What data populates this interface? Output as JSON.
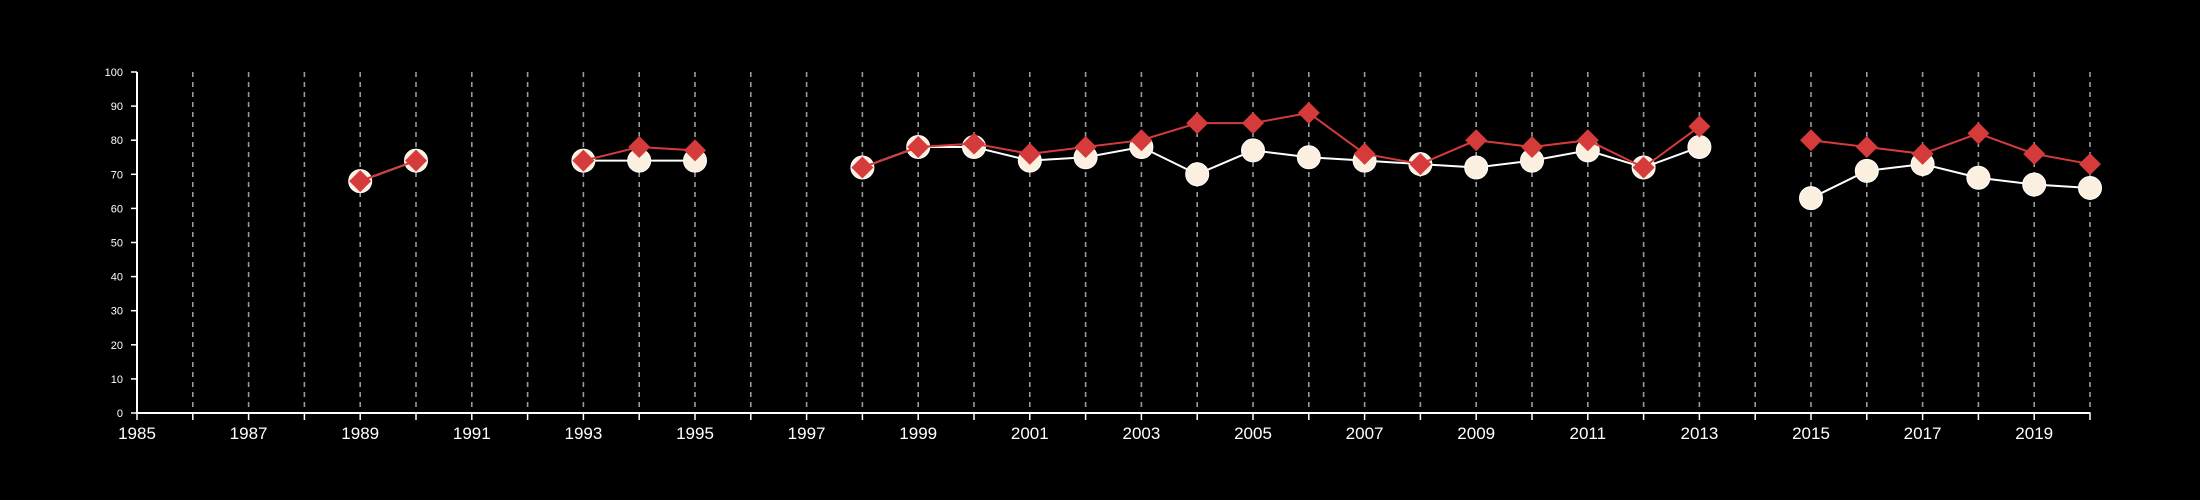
{
  "chart_data": {
    "type": "line",
    "title": "",
    "xlabel": "",
    "ylabel": "",
    "xlim": [
      1985,
      2020
    ],
    "ylim": [
      0,
      100
    ],
    "yticks": [
      0,
      10,
      20,
      30,
      40,
      50,
      60,
      70,
      80,
      90,
      100
    ],
    "xticks_labeled": [
      1985,
      1987,
      1989,
      1991,
      1993,
      1995,
      1997,
      1999,
      2001,
      2003,
      2005,
      2007,
      2009,
      2011,
      2013,
      2015,
      2017,
      2019
    ],
    "vertical_gridlines": "dashed, every year",
    "background_color": "#000000",
    "axis_color": "#ffffff",
    "series": [
      {
        "marker": "circle",
        "color": "#fbefe0",
        "line_color": "#ffffff",
        "points": [
          [
            1989,
            68
          ],
          [
            1990,
            74
          ],
          [
            1993,
            74
          ],
          [
            1994,
            74
          ],
          [
            1995,
            74
          ],
          [
            1998,
            72
          ],
          [
            1999,
            78
          ],
          [
            2000,
            78
          ],
          [
            2001,
            74
          ],
          [
            2002,
            75
          ],
          [
            2003,
            78
          ],
          [
            2004,
            70
          ],
          [
            2005,
            77
          ],
          [
            2006,
            75
          ],
          [
            2007,
            74
          ],
          [
            2008,
            73
          ],
          [
            2009,
            72
          ],
          [
            2010,
            74
          ],
          [
            2011,
            77
          ],
          [
            2012,
            72
          ],
          [
            2013,
            78
          ],
          [
            2015,
            63
          ],
          [
            2016,
            71
          ],
          [
            2017,
            73
          ],
          [
            2018,
            69
          ],
          [
            2019,
            67
          ],
          [
            2020,
            66
          ]
        ]
      },
      {
        "marker": "diamond",
        "color": "#d63b3b",
        "line_color": "#d63b3b",
        "points": [
          [
            1989,
            68
          ],
          [
            1990,
            74
          ],
          [
            1993,
            74
          ],
          [
            1994,
            78
          ],
          [
            1995,
            77
          ],
          [
            1998,
            72
          ],
          [
            1999,
            78
          ],
          [
            2000,
            79
          ],
          [
            2001,
            76
          ],
          [
            2002,
            78
          ],
          [
            2003,
            80
          ],
          [
            2004,
            85
          ],
          [
            2005,
            85
          ],
          [
            2006,
            88
          ],
          [
            2007,
            76
          ],
          [
            2008,
            73
          ],
          [
            2009,
            80
          ],
          [
            2010,
            78
          ],
          [
            2011,
            80
          ],
          [
            2012,
            72
          ],
          [
            2013,
            84
          ],
          [
            2015,
            80
          ],
          [
            2016,
            78
          ],
          [
            2017,
            76
          ],
          [
            2018,
            82
          ],
          [
            2019,
            76
          ],
          [
            2020,
            73
          ]
        ]
      }
    ]
  }
}
